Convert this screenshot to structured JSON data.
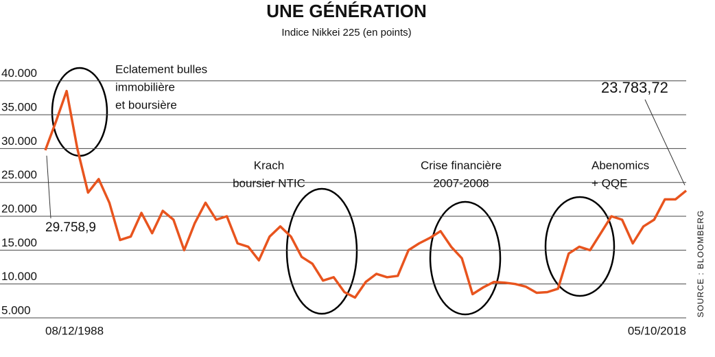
{
  "chart_data": {
    "type": "line",
    "title": "UNE GÉNÉRATION",
    "subtitle": "Indice Nikkei 225 (en points)",
    "source": "SOURCE : BLOOMBERG",
    "categories": [
      "08/12/1988",
      null,
      null,
      null,
      null,
      null,
      null,
      null,
      null,
      null,
      null,
      null,
      null,
      null,
      null,
      null,
      null,
      null,
      null,
      null,
      null,
      null,
      null,
      null,
      null,
      null,
      null,
      null,
      null,
      null,
      null,
      null,
      null,
      null,
      null,
      null,
      null,
      null,
      null,
      null,
      null,
      null,
      null,
      null,
      null,
      null,
      null,
      null,
      null,
      null,
      null,
      null,
      null,
      null,
      null,
      null,
      null,
      null,
      null,
      null,
      "05/10/2018"
    ],
    "series": [
      {
        "name": "Nikkei 225",
        "color": "#e8541e",
        "values": [
          29758.9,
          34000,
          38500,
          30000,
          23500,
          25500,
          22000,
          16500,
          17000,
          20500,
          17500,
          20800,
          19500,
          15000,
          19000,
          22000,
          19500,
          20000,
          16000,
          15500,
          13500,
          17000,
          18500,
          17000,
          14000,
          13000,
          10500,
          11000,
          8800,
          8000,
          10300,
          11500,
          11000,
          11200,
          15000,
          16000,
          16800,
          17800,
          15500,
          13800,
          8500,
          9500,
          10300,
          10200,
          10000,
          9600,
          8700,
          8800,
          9300,
          14500,
          15500,
          15000,
          17500,
          20000,
          19500,
          16000,
          18500,
          19500,
          22500,
          22500,
          23783.72
        ]
      }
    ],
    "start_label": "29.758,9",
    "end_label": "23.783,72",
    "annotations": [
      {
        "lines": [
          "Eclatement bulles",
          "immobilière",
          "et boursière"
        ],
        "index": 2
      },
      {
        "lines": [
          "Krach",
          "boursier NTIC"
        ],
        "index": 23
      },
      {
        "lines": [
          "Crise financière",
          "2007-2008"
        ],
        "index": 39
      },
      {
        "lines": [
          "Abenomics",
          "+ QQE"
        ],
        "index": 51
      }
    ],
    "ylim": [
      5000,
      41800
    ],
    "yticks": [
      {
        "value": 5000,
        "label": "5.000"
      },
      {
        "value": 10000,
        "label": "10.000"
      },
      {
        "value": 15000,
        "label": "15.000"
      },
      {
        "value": 20000,
        "label": "20.000"
      },
      {
        "value": 25000,
        "label": "25.000"
      },
      {
        "value": 30000,
        "label": "30.000"
      },
      {
        "value": 35000,
        "label": "35.000"
      },
      {
        "value": 40000,
        "label": "40.000"
      }
    ],
    "grid": true
  }
}
